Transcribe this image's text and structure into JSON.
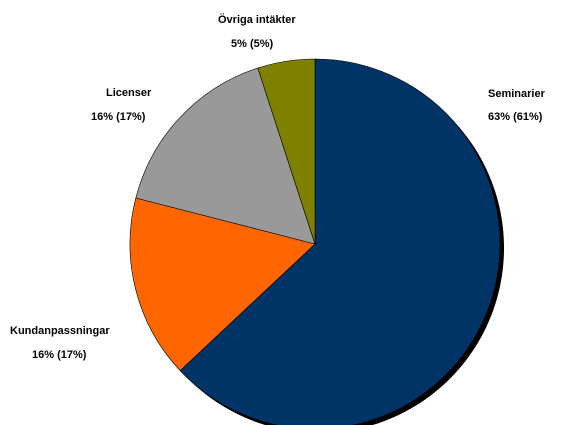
{
  "chart_data": {
    "type": "pie",
    "title": "",
    "slices": [
      {
        "name": "Seminarier",
        "value": 63,
        "label": "Seminarier",
        "detail": "63% (61%)",
        "color": "#003366"
      },
      {
        "name": "Kundanpassningar",
        "value": 16,
        "label": "Kundanpassningar",
        "detail": "16% (17%)",
        "color": "#FF6600"
      },
      {
        "name": "Licenser",
        "value": 16,
        "label": "Licenser",
        "detail": "16% (17%)",
        "color": "#999999"
      },
      {
        "name": "Övriga intäkter",
        "value": 5,
        "label": "Övriga intäkter",
        "detail": "5% (5%)",
        "color": "#808000"
      }
    ],
    "legend": false,
    "start_angle": "12 o'clock",
    "direction": "clockwise"
  }
}
